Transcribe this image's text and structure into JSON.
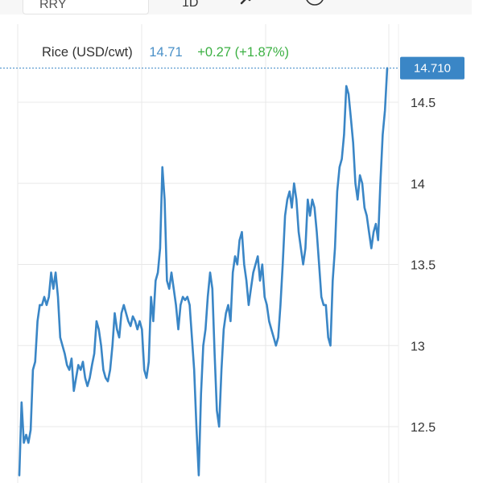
{
  "toolbar": {
    "symbol": "RRY",
    "timeframe": "1D"
  },
  "quote": {
    "name": "Rice (USD/cwt)",
    "last": "14.71",
    "change": "+0.27 (+1.87%)"
  },
  "colors": {
    "line": "#3a86c6",
    "up": "#3cb043",
    "badge": "#3a86c6",
    "grid": "#e8e8e8"
  },
  "chart_data": {
    "type": "line",
    "ylim": [
      12.25,
      15.25
    ],
    "yticks": [
      "14.5",
      "14",
      "13.5",
      "13",
      "12.5"
    ],
    "last_label": "14.710",
    "last_value": 14.71,
    "series": [
      {
        "values": [
          12.2,
          12.65,
          12.4,
          12.45,
          12.4,
          12.48,
          12.85,
          12.9,
          13.15,
          13.25,
          13.25,
          13.3,
          13.25,
          13.3,
          13.45,
          13.35,
          13.45,
          13.3,
          13.05,
          13.0,
          12.95,
          12.88,
          12.85,
          12.92,
          12.72,
          12.8,
          12.88,
          12.85,
          12.9,
          12.8,
          12.75,
          12.8,
          12.88,
          12.95,
          13.15,
          13.1,
          13.0,
          12.85,
          12.8,
          12.78,
          12.85,
          13.0,
          13.2,
          13.1,
          13.05,
          13.2,
          13.25,
          13.2,
          13.15,
          13.12,
          13.18,
          13.15,
          13.1,
          13.15,
          13.1,
          12.85,
          12.8,
          12.9,
          13.3,
          13.15,
          13.4,
          13.45,
          13.6,
          14.1,
          13.9,
          13.4,
          13.35,
          13.45,
          13.35,
          13.25,
          13.1,
          13.25,
          13.3,
          13.28,
          13.3,
          13.25,
          13.05,
          12.85,
          12.5,
          12.2,
          12.7,
          13.0,
          13.1,
          13.3,
          13.45,
          13.35,
          12.95,
          12.6,
          12.5,
          12.85,
          13.1,
          13.2,
          13.25,
          13.15,
          13.45,
          13.55,
          13.5,
          13.65,
          13.7,
          13.5,
          13.4,
          13.25,
          13.35,
          13.45,
          13.5,
          13.55,
          13.4,
          13.5,
          13.3,
          13.25,
          13.15,
          13.1,
          13.05,
          13.0,
          13.05,
          13.25,
          13.5,
          13.8,
          13.9,
          13.95,
          13.85,
          14.0,
          13.9,
          13.7,
          13.6,
          13.5,
          13.6,
          13.9,
          13.8,
          13.9,
          13.85,
          13.7,
          13.5,
          13.3,
          13.25,
          13.25,
          13.05,
          13.0,
          13.4,
          13.6,
          13.95,
          14.1,
          14.15,
          14.3,
          14.6,
          14.55,
          14.4,
          14.25,
          14.0,
          13.9,
          14.05,
          14.0,
          13.85,
          13.8,
          13.7,
          13.6,
          13.7,
          13.75,
          13.65,
          14.0,
          14.3,
          14.45,
          14.71
        ]
      }
    ]
  }
}
